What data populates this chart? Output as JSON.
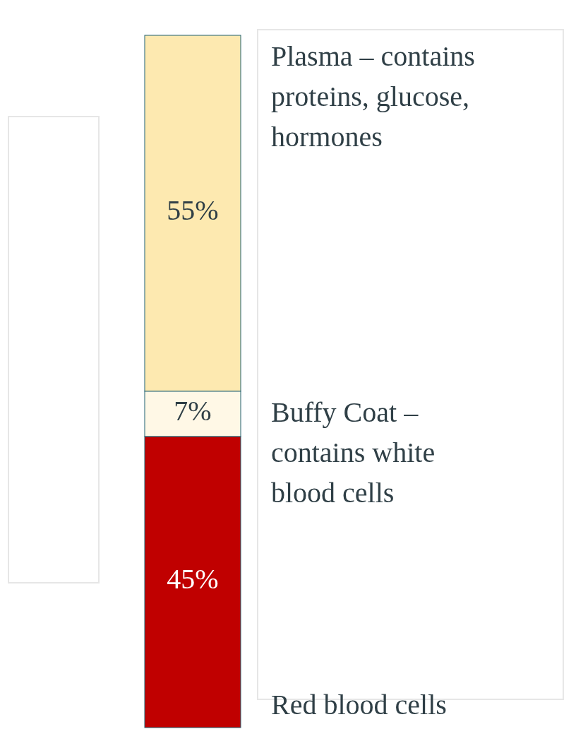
{
  "chart_data": {
    "type": "bar",
    "stacked": true,
    "categories": [
      null
    ],
    "series": [
      {
        "name": "Red blood cells",
        "color": "#c00000",
        "values": [
          45
        ],
        "value_labels": [
          "45%"
        ]
      },
      {
        "name": "Buffy Coat – contains white blood cells",
        "color": "#fff8e6",
        "values": [
          7
        ],
        "value_labels": [
          "7%"
        ]
      },
      {
        "name": "Plasma – contains proteins, glucose, hormones",
        "color": "#fde9b0",
        "values": [
          55
        ],
        "value_labels": [
          "55%"
        ]
      }
    ]
  }
}
